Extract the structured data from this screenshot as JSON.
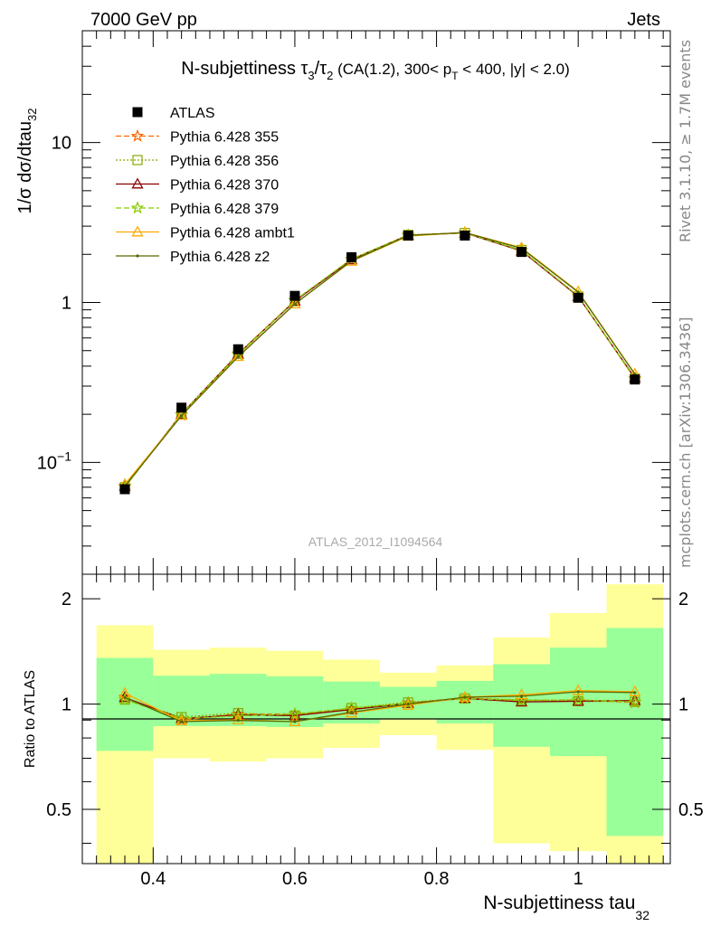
{
  "header": {
    "left": "7000 GeV pp",
    "right": "Jets"
  },
  "side_text": {
    "upper": "Rivet 3.1.10, ≥ 1.7M events",
    "lower": "mcplots.cern.ch [arXiv:1306.3436]"
  },
  "watermark": "ATLAS_2012_I1094564",
  "chart_data": [
    {
      "type": "line",
      "title": {
        "main": "N-subjettiness τ",
        "tau3_sub": "3",
        "slash": "/τ",
        "tau2_sub": "2",
        "part1": " (CA(1.2), 300< p",
        "pt_sub": "T",
        "part2": " < 400, |y| < 2.0)"
      },
      "ylabel": {
        "main": "1/σ dσ/dtau",
        "sub": "32"
      },
      "xlim": [
        0.3,
        1.13
      ],
      "ylim": [
        0.02,
        50
      ],
      "yscale": "log",
      "yticks": [
        {
          "value": 0.1,
          "base": "10",
          "exp": "−1"
        },
        {
          "value": 1,
          "label": "1"
        },
        {
          "value": 10,
          "label": "10"
        }
      ],
      "x": [
        0.36,
        0.44,
        0.52,
        0.6,
        0.68,
        0.76,
        0.84,
        0.92,
        1.0,
        1.08
      ],
      "data": {
        "name": "ATLAS",
        "values": [
          0.068,
          0.22,
          0.51,
          1.1,
          1.92,
          2.62,
          2.62,
          2.07,
          1.07,
          0.33
        ]
      },
      "series": [
        {
          "name": "Pythia 6.428 355",
          "color": "#ff6600",
          "dash": "6,3",
          "marker": "star",
          "values": [
            0.071,
            0.198,
            0.478,
            1.03,
            1.86,
            2.64,
            2.73,
            2.12,
            1.1,
            0.333
          ]
        },
        {
          "name": "Pythia 6.428 356",
          "color": "#88aa00",
          "dash": "2,2",
          "marker": "square",
          "values": [
            0.07,
            0.202,
            0.48,
            1.02,
            1.87,
            2.65,
            2.72,
            2.13,
            1.09,
            0.335
          ]
        },
        {
          "name": "Pythia 6.428 370",
          "color": "#8b0000",
          "dash": "",
          "marker": "triangle",
          "values": [
            0.071,
            0.2,
            0.475,
            1.02,
            1.85,
            2.63,
            2.72,
            2.1,
            1.09,
            0.338
          ]
        },
        {
          "name": "Pythia 6.428 379",
          "color": "#88cc00",
          "dash": "6,3",
          "marker": "star",
          "values": [
            0.07,
            0.2,
            0.472,
            1.03,
            1.87,
            2.63,
            2.72,
            2.12,
            1.1,
            0.335
          ]
        },
        {
          "name": "Pythia 6.428 ambt1",
          "color": "#ffaa00",
          "dash": "",
          "marker": "triangle",
          "values": [
            0.073,
            0.197,
            0.46,
            0.98,
            1.81,
            2.6,
            2.74,
            2.2,
            1.17,
            0.358
          ]
        },
        {
          "name": "Pythia 6.428 z2",
          "color": "#556b00",
          "dash": "",
          "marker": "dot",
          "values": [
            0.071,
            0.196,
            0.458,
            0.98,
            1.82,
            2.62,
            2.74,
            2.18,
            1.16,
            0.356
          ]
        }
      ],
      "legend": "top-left"
    },
    {
      "type": "area",
      "ylabel": "Ratio to ATLAS",
      "xlabel": {
        "main": "N-subjettiness tau",
        "sub": "32"
      },
      "xlim": [
        0.3,
        1.13
      ],
      "ylim": [
        0.35,
        2.35
      ],
      "yscale": "log",
      "yticks": [
        {
          "value": 0.5,
          "label": "0.5"
        },
        {
          "value": 1,
          "label": "1"
        },
        {
          "value": 2,
          "label": "2"
        }
      ],
      "xticks": [
        {
          "value": 0.4,
          "label": "0.4"
        },
        {
          "value": 0.6,
          "label": "0.6"
        },
        {
          "value": 0.8,
          "label": "0.8"
        },
        {
          "value": 1.0,
          "label": "1"
        }
      ],
      "bin_edges": [
        0.32,
        0.4,
        0.48,
        0.56,
        0.64,
        0.72,
        0.8,
        0.88,
        0.96,
        1.04,
        1.12
      ],
      "band_outer": {
        "color": "#ffff99",
        "low": [
          0.3,
          0.7,
          0.685,
          0.7,
          0.75,
          0.815,
          0.74,
          0.4,
          0.38,
          0.28
        ],
        "high": [
          1.68,
          1.43,
          1.45,
          1.42,
          1.34,
          1.23,
          1.29,
          1.55,
          1.82,
          2.2
        ]
      },
      "band_inner": {
        "color": "#99ff99",
        "low": [
          0.735,
          0.865,
          0.865,
          0.86,
          0.88,
          0.905,
          0.88,
          0.755,
          0.71,
          0.42
        ],
        "high": [
          1.355,
          1.205,
          1.22,
          1.2,
          1.16,
          1.12,
          1.165,
          1.3,
          1.45,
          1.65
        ]
      },
      "series": [
        {
          "name": "Pythia 6.428 355",
          "values": [
            1.045,
            0.9,
            0.937,
            0.936,
            0.968,
            1.008,
            1.042,
            1.024,
            1.028,
            1.01
          ]
        },
        {
          "name": "Pythia 6.428 356",
          "values": [
            1.03,
            0.918,
            0.942,
            0.927,
            0.974,
            1.011,
            1.038,
            1.029,
            1.019,
            1.015
          ]
        },
        {
          "name": "Pythia 6.428 370",
          "values": [
            1.044,
            0.909,
            0.931,
            0.927,
            0.964,
            1.004,
            1.038,
            1.014,
            1.019,
            1.024
          ]
        },
        {
          "name": "Pythia 6.428 379",
          "values": [
            1.03,
            0.909,
            0.925,
            0.936,
            0.974,
            1.004,
            1.038,
            1.024,
            1.028,
            1.015
          ]
        },
        {
          "name": "Pythia 6.428 ambt1",
          "values": [
            1.074,
            0.895,
            0.902,
            0.891,
            0.943,
            0.992,
            1.046,
            1.063,
            1.093,
            1.085
          ]
        },
        {
          "name": "Pythia 6.428 z2",
          "values": [
            1.044,
            0.891,
            0.898,
            0.891,
            0.948,
            1.0,
            1.046,
            1.053,
            1.084,
            1.079
          ]
        }
      ]
    }
  ]
}
